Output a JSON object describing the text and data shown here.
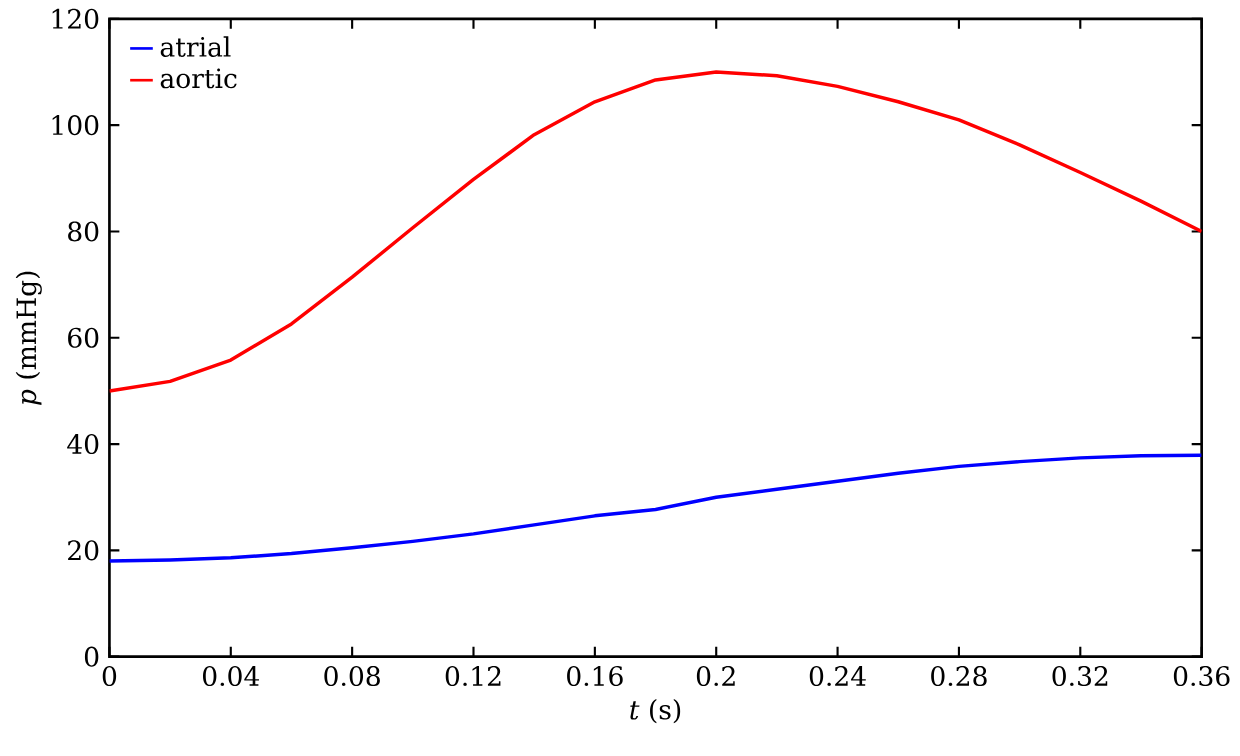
{
  "chart_data": {
    "type": "line",
    "xlabel": "*t* (s)",
    "ylabel": "*p* (mmHg)",
    "x": [
      0,
      0.02,
      0.04,
      0.06,
      0.08,
      0.1,
      0.12,
      0.14,
      0.16,
      0.18,
      0.2,
      0.22,
      0.24,
      0.26,
      0.28,
      0.3,
      0.32,
      0.34,
      0.36
    ],
    "series": [
      {
        "name": "atrial",
        "color": "#0000ff",
        "values": [
          18,
          18.2,
          18.6,
          19.4,
          20.5,
          21.7,
          23.1,
          24.8,
          26.5,
          27.7,
          30,
          31.5,
          33,
          34.5,
          35.8,
          36.7,
          37.4,
          37.8,
          37.9
        ]
      },
      {
        "name": "aortic",
        "color": "#ff0000",
        "values": [
          50,
          51.8,
          55.8,
          62.6,
          71.4,
          80.7,
          89.8,
          98.2,
          104.4,
          108.5,
          110,
          109.3,
          107.3,
          104.4,
          101,
          96.3,
          91.1,
          85.7,
          80
        ]
      }
    ],
    "xlim": [
      0,
      0.36
    ],
    "xticks": [
      0,
      0.04,
      0.08,
      0.12,
      0.16,
      0.2,
      0.24,
      0.28,
      0.32,
      0.36
    ],
    "ylim": [
      0,
      120
    ],
    "yticks": [
      0,
      20,
      40,
      60,
      80,
      100,
      120
    ],
    "grid": false,
    "legend": "top left",
    "line_style": "solid",
    "marker": "none"
  }
}
